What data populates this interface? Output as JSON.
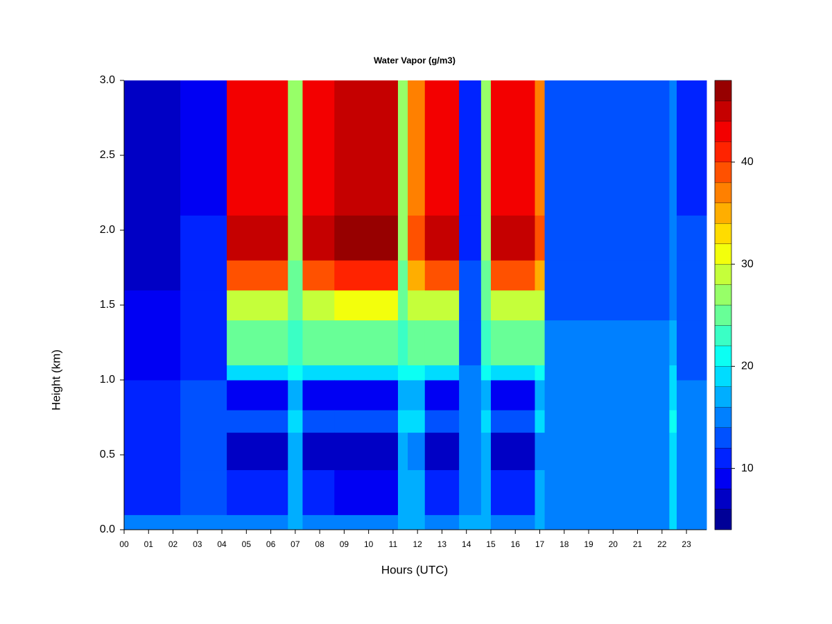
{
  "chart_data": {
    "type": "heatmap",
    "title": "Water Vapor (g/m3)",
    "x_label": "Hours (UTC)",
    "y_label": "Height (km)",
    "xbins": [
      0,
      2.3,
      4.2,
      6.7,
      7.3,
      8.6,
      11.2,
      11.6,
      12.3,
      13.7,
      14.6,
      15.0,
      16.8,
      17.2,
      22.3,
      22.6,
      23.82
    ],
    "ybins": [
      0,
      0.1,
      0.4,
      0.65,
      0.8,
      1.0,
      1.1,
      1.4,
      1.6,
      1.8,
      2.1,
      3.0
    ],
    "z": [
      [
        14,
        10,
        10,
        10,
        10,
        9,
        8,
        8,
        7,
        6,
        6
      ],
      [
        15,
        12,
        12,
        12,
        12,
        11,
        11,
        10,
        10,
        10,
        9
      ],
      [
        15,
        10,
        7,
        13,
        9,
        18,
        24,
        28,
        38,
        45,
        42
      ],
      [
        17,
        17,
        16,
        18,
        17,
        20,
        22,
        24,
        25,
        26,
        26
      ],
      [
        15,
        10,
        7,
        13,
        9,
        18,
        24,
        28,
        38,
        45,
        42
      ],
      [
        15,
        9,
        6,
        12,
        8,
        18,
        25,
        30,
        40,
        46,
        44
      ],
      [
        17,
        17,
        16,
        18,
        17,
        20,
        22,
        24,
        25,
        26,
        26
      ],
      [
        17,
        16,
        15,
        18,
        16,
        20,
        24,
        28,
        34,
        38,
        36
      ],
      [
        15,
        10,
        7,
        13,
        9,
        18,
        24,
        28,
        38,
        45,
        42
      ],
      [
        16,
        15,
        15,
        15,
        14,
        14,
        13,
        12,
        12,
        11,
        11
      ],
      [
        17,
        17,
        16,
        18,
        17,
        20,
        22,
        24,
        25,
        26,
        26
      ],
      [
        15,
        10,
        7,
        13,
        9,
        18,
        24,
        28,
        38,
        45,
        42
      ],
      [
        17,
        16,
        15,
        18,
        16,
        20,
        24,
        28,
        34,
        38,
        36
      ],
      [
        15,
        15,
        15,
        15,
        15,
        14,
        14,
        13,
        13,
        13,
        12
      ],
      [
        18,
        18,
        19,
        20,
        19,
        18,
        16,
        15,
        15,
        15,
        15
      ],
      [
        15,
        15,
        15,
        14,
        14,
        13,
        13,
        12,
        12,
        12,
        11
      ]
    ],
    "xlim": [
      0,
      23.82
    ],
    "ylim": [
      0,
      3
    ],
    "zlim": [
      4,
      48
    ],
    "zstep": 2,
    "colormap": "jet",
    "xticks": [
      {
        "value": 0,
        "label": "00"
      },
      {
        "value": 1,
        "label": "01"
      },
      {
        "value": 2,
        "label": "02"
      },
      {
        "value": 3,
        "label": "03"
      },
      {
        "value": 4,
        "label": "04"
      },
      {
        "value": 5,
        "label": "05"
      },
      {
        "value": 6,
        "label": "06"
      },
      {
        "value": 7,
        "label": "07"
      },
      {
        "value": 8,
        "label": "08"
      },
      {
        "value": 9,
        "label": "09"
      },
      10,
      11,
      12,
      13,
      14,
      15,
      16,
      17,
      18,
      19,
      20,
      21,
      22,
      23
    ],
    "yticks": [
      {
        "value": 0,
        "label": "0.0"
      },
      {
        "value": 0.5,
        "label": "0.5"
      },
      {
        "value": 1,
        "label": "1.0"
      },
      {
        "value": 1.5,
        "label": "1.5"
      },
      {
        "value": 2,
        "label": "2.0"
      },
      {
        "value": 2.5,
        "label": "2.5"
      },
      {
        "value": 3,
        "label": "3.0"
      }
    ],
    "zticks": [
      10,
      20,
      30,
      40
    ]
  }
}
